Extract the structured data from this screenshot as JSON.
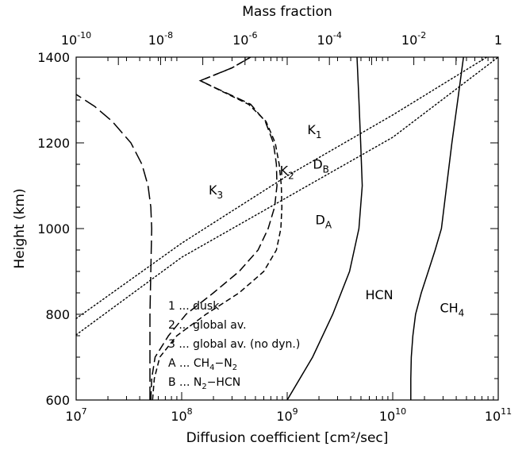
{
  "chart_data": {
    "type": "line",
    "title": "",
    "xlabel_bottom": "Diffusion coefficient [cm²/sec]",
    "xlabel_top": "Mass fraction",
    "ylabel": "Height (km)",
    "xscale": "log",
    "x2scale": "log",
    "xlim": [
      10000000,
      100000000000
    ],
    "x2lim": [
      1e-10,
      1
    ],
    "ylim": [
      600,
      1400
    ],
    "grid": false,
    "x_ticks": [
      {
        "base": "10",
        "exp": "7",
        "value": 10000000
      },
      {
        "base": "10",
        "exp": "8",
        "value": 100000000
      },
      {
        "base": "10",
        "exp": "9",
        "value": 1000000000
      },
      {
        "base": "10",
        "exp": "10",
        "value": 10000000000
      },
      {
        "base": "10",
        "exp": "11",
        "value": 100000000000
      }
    ],
    "x2_ticks": [
      {
        "base": "10",
        "exp": "-10",
        "value": 1e-10
      },
      {
        "base": "10",
        "exp": "-8",
        "value": 1e-08
      },
      {
        "base": "10",
        "exp": "-6",
        "value": 1e-06
      },
      {
        "base": "10",
        "exp": "-4",
        "value": 0.0001
      },
      {
        "base": "10",
        "exp": "-2",
        "value": 0.01
      },
      {
        "base": "1",
        "exp": "0",
        "value": 1
      }
    ],
    "y_ticks": [
      "600",
      "800",
      "1000",
      "1200",
      "1400"
    ],
    "series": [
      {
        "name": "K1",
        "axis": "bottom",
        "style": "short-dash",
        "points": [
          [
            53000000,
            600
          ],
          [
            55000000,
            650
          ],
          [
            62000000,
            700
          ],
          [
            90000000,
            750
          ],
          [
            170000000,
            800
          ],
          [
            350000000,
            850
          ],
          [
            600000000,
            900
          ],
          [
            790000000,
            950
          ],
          [
            870000000,
            1000
          ],
          [
            890000000,
            1050
          ],
          [
            880000000,
            1100
          ],
          [
            840000000,
            1150
          ],
          [
            770000000,
            1200
          ],
          [
            630000000,
            1250
          ],
          [
            430000000,
            1290
          ],
          [
            150000000,
            1345
          ],
          [
            300000000,
            1375
          ],
          [
            450000000,
            1400
          ]
        ]
      },
      {
        "name": "K2",
        "axis": "bottom",
        "style": "medium-dash",
        "points": [
          [
            51000000,
            600
          ],
          [
            52000000,
            650
          ],
          [
            56000000,
            700
          ],
          [
            75000000,
            750
          ],
          [
            110000000,
            800
          ],
          [
            200000000,
            850
          ],
          [
            350000000,
            900
          ],
          [
            530000000,
            950
          ],
          [
            660000000,
            1000
          ],
          [
            760000000,
            1050
          ],
          [
            800000000,
            1100
          ],
          [
            790000000,
            1150
          ],
          [
            740000000,
            1200
          ],
          [
            620000000,
            1250
          ],
          [
            450000000,
            1290
          ],
          [
            150000000,
            1345
          ],
          [
            300000000,
            1375
          ],
          [
            450000000,
            1400
          ]
        ]
      },
      {
        "name": "K3",
        "axis": "bottom",
        "style": "long-dash",
        "points": [
          [
            50000000,
            600
          ],
          [
            50000000,
            700
          ],
          [
            50000000,
            800
          ],
          [
            51000000,
            900
          ],
          [
            52000000,
            1000
          ],
          [
            51000000,
            1050
          ],
          [
            48000000,
            1100
          ],
          [
            42000000,
            1150
          ],
          [
            33000000,
            1200
          ],
          [
            22000000,
            1250
          ],
          [
            15000000,
            1285
          ],
          [
            10000000,
            1313
          ]
        ]
      },
      {
        "name": "D_A",
        "axis": "bottom",
        "style": "dotted",
        "points": [
          [
            10000000,
            752
          ],
          [
            100000000,
            933
          ],
          [
            1000000000,
            1073
          ],
          [
            10000000000,
            1213
          ],
          [
            100000000000,
            1400
          ]
        ]
      },
      {
        "name": "D_B",
        "axis": "bottom",
        "style": "dotted",
        "points": [
          [
            10000000,
            790
          ],
          [
            100000000,
            966
          ],
          [
            1000000000,
            1123
          ],
          [
            10000000000,
            1265
          ],
          [
            78000000000,
            1400
          ]
        ]
      },
      {
        "name": "HCN",
        "axis": "top",
        "style": "solid",
        "points": [
          [
            1e-05,
            600
          ],
          [
            4e-05,
            700
          ],
          [
            0.00012,
            800
          ],
          [
            0.0003,
            900
          ],
          [
            0.0005,
            1000
          ],
          [
            0.0006,
            1100
          ],
          [
            0.00055,
            1200
          ],
          [
            0.0005,
            1300
          ],
          [
            0.00045,
            1400
          ]
        ]
      },
      {
        "name": "CH4",
        "axis": "top",
        "style": "solid",
        "points": [
          [
            0.0085,
            600
          ],
          [
            0.0085,
            650
          ],
          [
            0.0087,
            700
          ],
          [
            0.0095,
            750
          ],
          [
            0.011,
            800
          ],
          [
            0.015,
            850
          ],
          [
            0.022,
            900
          ],
          [
            0.032,
            950
          ],
          [
            0.045,
            1000
          ],
          [
            0.06,
            1100
          ],
          [
            0.08,
            1200
          ],
          [
            0.11,
            1300
          ],
          [
            0.15,
            1400
          ]
        ]
      }
    ],
    "curve_labels": [
      {
        "base": "K",
        "sub": "1",
        "x": 1550000000,
        "y": 1220
      },
      {
        "base": "K",
        "sub": "2",
        "x": 850000000,
        "y": 1125
      },
      {
        "base": "K",
        "sub": "3",
        "x": 180000000,
        "y": 1080
      },
      {
        "base": "D",
        "sub": "B",
        "x": 1750000000,
        "y": 1140
      },
      {
        "base": "D",
        "sub": "A",
        "x": 1850000000,
        "y": 1010
      },
      {
        "base": "HCN",
        "sub": "",
        "x": 5500000000,
        "y": 835
      },
      {
        "base": "CH",
        "sub": "4",
        "x": 28000000000,
        "y": 805
      }
    ],
    "legend": {
      "position": "bottom-left",
      "entries": [
        "1 ... dusk",
        "2 ... global av.",
        "3 ... global av. (no dyn.)"
      ],
      "entry_a": {
        "prefix": "A ... CH",
        "sub": "4",
        "suffix": "−N",
        "sub2": "2"
      },
      "entry_b": {
        "prefix": "B ... N",
        "sub": "2",
        "suffix": "−HCN",
        "sub2": ""
      }
    }
  }
}
